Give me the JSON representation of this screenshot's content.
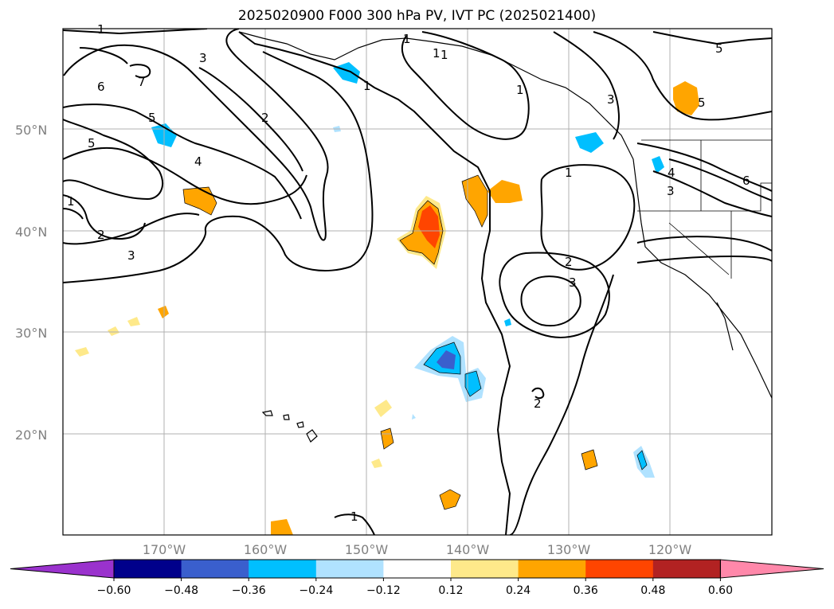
{
  "title": "2025020900 F000 300 hPa PV, IVT PC (2025021400)",
  "lat_labels": [
    "50°N",
    "40°N",
    "30°N",
    "20°N"
  ],
  "lon_labels": [
    "170°W",
    "160°W",
    "150°W",
    "140°W",
    "130°W",
    "120°W"
  ],
  "contour_labels": [
    "1",
    "1",
    "1",
    "1",
    "1",
    "1",
    "2",
    "2",
    "2",
    "2",
    "3",
    "3",
    "3",
    "3",
    "4",
    "4",
    "5",
    "5",
    "5",
    "5",
    "6",
    "6",
    "7",
    "3",
    "1",
    "1",
    "1"
  ],
  "colorbar": {
    "ticks": [
      "−0.60",
      "−0.48",
      "−0.36",
      "−0.24",
      "−0.12",
      "0.12",
      "0.24",
      "0.36",
      "0.48",
      "0.60"
    ],
    "colors": [
      "#9a32cd",
      "#00008b",
      "#3a5fcd",
      "#00bfff",
      "#b0e2ff",
      "#ffffff",
      "#fee98a",
      "#ffa500",
      "#ff4500",
      "#b22222",
      "#ff88aa"
    ]
  }
}
